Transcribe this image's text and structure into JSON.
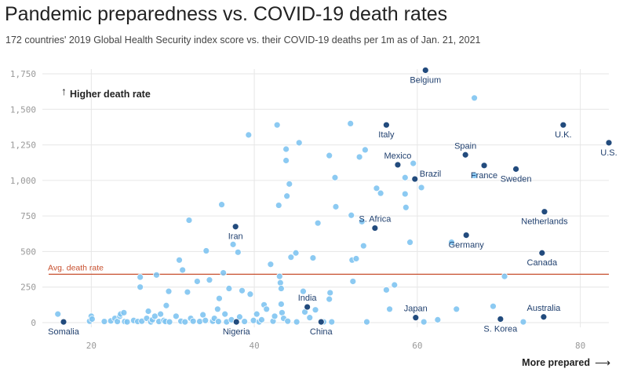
{
  "title": "Pandemic preparedness vs. COVID-19 death rates",
  "subtitle": "172 countries' 2019 Global Health Security index score vs. their COVID-19 deaths per 1m as of Jan. 21, 2021",
  "colors": {
    "other": "#7cc3f0",
    "highlight": "#224b7d",
    "avg_line": "#c8502f",
    "grid": "#e6e6e6"
  },
  "chart_data": {
    "type": "scatter",
    "xlim": [
      14,
      83.5
    ],
    "ylim": [
      0,
      1750
    ],
    "x_ticks": [
      20,
      40,
      60,
      80
    ],
    "x_tick_labels": [
      "20",
      "40",
      "60",
      "80"
    ],
    "y_ticks": [
      0,
      250,
      500,
      750,
      1000,
      1250,
      1500,
      1750
    ],
    "y_tick_labels": [
      "0",
      "250",
      "500",
      "750",
      "1,000",
      "1,250",
      "1,500",
      "1,750"
    ],
    "grid": true,
    "avg_death_rate": 340,
    "avg_label": "Avg. death rate",
    "y_annotation": "Higher death rate",
    "x_annotation": "More prepared",
    "highlighted": [
      {
        "name": "Belgium",
        "x": 61.0,
        "y": 1775,
        "label_pos": "below"
      },
      {
        "name": "Italy",
        "x": 56.2,
        "y": 1390,
        "label_pos": "below"
      },
      {
        "name": "U.K.",
        "x": 77.9,
        "y": 1390,
        "label_pos": "below"
      },
      {
        "name": "U.S.",
        "x": 83.5,
        "y": 1265,
        "label_pos": "below"
      },
      {
        "name": "Spain",
        "x": 65.9,
        "y": 1180,
        "label_pos": "above"
      },
      {
        "name": "Mexico",
        "x": 57.6,
        "y": 1110,
        "label_pos": "above"
      },
      {
        "name": "France",
        "x": 68.2,
        "y": 1105,
        "label_pos": "below"
      },
      {
        "name": "Sweden",
        "x": 72.1,
        "y": 1080,
        "label_pos": "below"
      },
      {
        "name": "Brazil",
        "x": 59.7,
        "y": 1010,
        "label_pos": "right"
      },
      {
        "name": "Netherlands",
        "x": 75.6,
        "y": 780,
        "label_pos": "below"
      },
      {
        "name": "Iran",
        "x": 37.7,
        "y": 675,
        "label_pos": "below"
      },
      {
        "name": "S. Africa",
        "x": 54.8,
        "y": 665,
        "label_pos": "above"
      },
      {
        "name": "Germany",
        "x": 66.0,
        "y": 615,
        "label_pos": "below"
      },
      {
        "name": "Canada",
        "x": 75.3,
        "y": 490,
        "label_pos": "below"
      },
      {
        "name": "India",
        "x": 46.5,
        "y": 110,
        "label_pos": "above"
      },
      {
        "name": "Japan",
        "x": 59.8,
        "y": 35,
        "label_pos": "above"
      },
      {
        "name": "Australia",
        "x": 75.5,
        "y": 40,
        "label_pos": "above"
      },
      {
        "name": "S. Korea",
        "x": 70.2,
        "y": 25,
        "label_pos": "below"
      },
      {
        "name": "Somalia",
        "x": 16.6,
        "y": 5,
        "label_pos": "below"
      },
      {
        "name": "Nigeria",
        "x": 37.8,
        "y": 5,
        "label_pos": "below"
      },
      {
        "name": "China",
        "x": 48.2,
        "y": 5,
        "label_pos": "below"
      }
    ],
    "points": [
      {
        "x": 15.9,
        "y": 60
      },
      {
        "x": 19.8,
        "y": 10
      },
      {
        "x": 20.0,
        "y": 45
      },
      {
        "x": 20.1,
        "y": 25
      },
      {
        "x": 21.6,
        "y": 8
      },
      {
        "x": 22.4,
        "y": 12
      },
      {
        "x": 22.9,
        "y": 30
      },
      {
        "x": 23.2,
        "y": 8
      },
      {
        "x": 23.5,
        "y": 45
      },
      {
        "x": 23.6,
        "y": 60
      },
      {
        "x": 24.0,
        "y": 70
      },
      {
        "x": 24.1,
        "y": 8
      },
      {
        "x": 24.4,
        "y": 5
      },
      {
        "x": 25.2,
        "y": 15
      },
      {
        "x": 25.7,
        "y": 8
      },
      {
        "x": 26.0,
        "y": 250
      },
      {
        "x": 26.0,
        "y": 320
      },
      {
        "x": 26.2,
        "y": 10
      },
      {
        "x": 26.8,
        "y": 30
      },
      {
        "x": 27.0,
        "y": 80
      },
      {
        "x": 27.3,
        "y": 5
      },
      {
        "x": 27.5,
        "y": 20
      },
      {
        "x": 27.8,
        "y": 45
      },
      {
        "x": 28.0,
        "y": 335
      },
      {
        "x": 28.3,
        "y": 8
      },
      {
        "x": 28.5,
        "y": 60
      },
      {
        "x": 28.9,
        "y": 15
      },
      {
        "x": 29.1,
        "y": 8
      },
      {
        "x": 29.2,
        "y": 120
      },
      {
        "x": 29.5,
        "y": 220
      },
      {
        "x": 29.6,
        "y": 5
      },
      {
        "x": 30.4,
        "y": 45
      },
      {
        "x": 30.8,
        "y": 440
      },
      {
        "x": 31.0,
        "y": 10
      },
      {
        "x": 31.2,
        "y": 370
      },
      {
        "x": 31.5,
        "y": 5
      },
      {
        "x": 31.8,
        "y": 215
      },
      {
        "x": 32.0,
        "y": 720
      },
      {
        "x": 32.2,
        "y": 30
      },
      {
        "x": 32.5,
        "y": 10
      },
      {
        "x": 33.0,
        "y": 290
      },
      {
        "x": 33.3,
        "y": 8
      },
      {
        "x": 33.7,
        "y": 55
      },
      {
        "x": 34.0,
        "y": 15
      },
      {
        "x": 34.1,
        "y": 505
      },
      {
        "x": 34.5,
        "y": 300
      },
      {
        "x": 34.9,
        "y": 10
      },
      {
        "x": 35.1,
        "y": 30
      },
      {
        "x": 35.5,
        "y": 95
      },
      {
        "x": 35.6,
        "y": 8
      },
      {
        "x": 35.7,
        "y": 170
      },
      {
        "x": 36.0,
        "y": 830
      },
      {
        "x": 36.2,
        "y": 350
      },
      {
        "x": 36.4,
        "y": 60
      },
      {
        "x": 36.6,
        "y": 5
      },
      {
        "x": 36.9,
        "y": 240
      },
      {
        "x": 37.2,
        "y": 20
      },
      {
        "x": 37.4,
        "y": 550
      },
      {
        "x": 38.0,
        "y": 495
      },
      {
        "x": 38.2,
        "y": 40
      },
      {
        "x": 38.5,
        "y": 225
      },
      {
        "x": 38.8,
        "y": 8
      },
      {
        "x": 39.3,
        "y": 1320
      },
      {
        "x": 39.5,
        "y": 200
      },
      {
        "x": 39.9,
        "y": 15
      },
      {
        "x": 40.3,
        "y": 60
      },
      {
        "x": 40.6,
        "y": 5
      },
      {
        "x": 40.9,
        "y": 20
      },
      {
        "x": 41.2,
        "y": 125
      },
      {
        "x": 41.5,
        "y": 95
      },
      {
        "x": 42.0,
        "y": 410
      },
      {
        "x": 42.3,
        "y": 10
      },
      {
        "x": 42.5,
        "y": 45
      },
      {
        "x": 42.8,
        "y": 1390
      },
      {
        "x": 43.0,
        "y": 825
      },
      {
        "x": 43.1,
        "y": 325
      },
      {
        "x": 43.2,
        "y": 280
      },
      {
        "x": 43.3,
        "y": 240
      },
      {
        "x": 43.3,
        "y": 130
      },
      {
        "x": 43.4,
        "y": 70
      },
      {
        "x": 43.6,
        "y": 30
      },
      {
        "x": 43.9,
        "y": 1220
      },
      {
        "x": 43.9,
        "y": 1140
      },
      {
        "x": 44.0,
        "y": 890
      },
      {
        "x": 44.1,
        "y": 10
      },
      {
        "x": 44.3,
        "y": 975
      },
      {
        "x": 44.5,
        "y": 460
      },
      {
        "x": 45.1,
        "y": 490
      },
      {
        "x": 45.2,
        "y": 5
      },
      {
        "x": 45.5,
        "y": 1265
      },
      {
        "x": 46.0,
        "y": 220
      },
      {
        "x": 46.2,
        "y": 75
      },
      {
        "x": 46.8,
        "y": 35
      },
      {
        "x": 47.2,
        "y": 455
      },
      {
        "x": 47.5,
        "y": 90
      },
      {
        "x": 47.8,
        "y": 700
      },
      {
        "x": 48.5,
        "y": 5
      },
      {
        "x": 49.2,
        "y": 1175
      },
      {
        "x": 49.2,
        "y": 165
      },
      {
        "x": 49.3,
        "y": 210
      },
      {
        "x": 49.5,
        "y": 5
      },
      {
        "x": 49.9,
        "y": 1020
      },
      {
        "x": 50.0,
        "y": 815
      },
      {
        "x": 51.8,
        "y": 1400
      },
      {
        "x": 51.9,
        "y": 755
      },
      {
        "x": 52.0,
        "y": 440
      },
      {
        "x": 52.1,
        "y": 290
      },
      {
        "x": 52.5,
        "y": 450
      },
      {
        "x": 52.9,
        "y": 1165
      },
      {
        "x": 53.2,
        "y": 710
      },
      {
        "x": 53.4,
        "y": 540
      },
      {
        "x": 53.6,
        "y": 1215
      },
      {
        "x": 53.8,
        "y": 5
      },
      {
        "x": 55.0,
        "y": 945
      },
      {
        "x": 55.5,
        "y": 910
      },
      {
        "x": 56.2,
        "y": 230
      },
      {
        "x": 56.6,
        "y": 95
      },
      {
        "x": 57.2,
        "y": 265
      },
      {
        "x": 58.5,
        "y": 1020
      },
      {
        "x": 58.5,
        "y": 905
      },
      {
        "x": 58.6,
        "y": 810
      },
      {
        "x": 59.1,
        "y": 565
      },
      {
        "x": 59.5,
        "y": 1120
      },
      {
        "x": 60.5,
        "y": 950
      },
      {
        "x": 60.8,
        "y": 5
      },
      {
        "x": 62.5,
        "y": 20
      },
      {
        "x": 64.2,
        "y": 565
      },
      {
        "x": 64.8,
        "y": 95
      },
      {
        "x": 67.0,
        "y": 1580
      },
      {
        "x": 67.0,
        "y": 1035
      },
      {
        "x": 69.3,
        "y": 115
      },
      {
        "x": 70.7,
        "y": 325
      },
      {
        "x": 73.0,
        "y": 5
      }
    ]
  }
}
